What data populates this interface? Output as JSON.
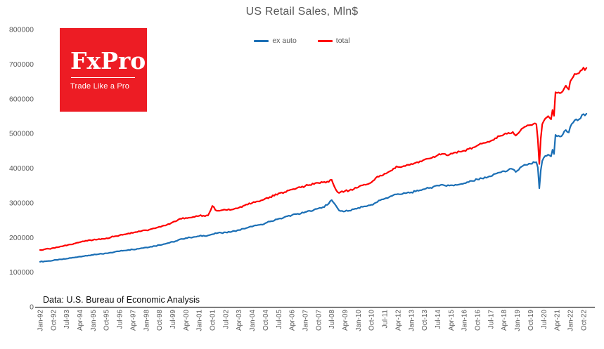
{
  "title": "US Retail Sales, Mln$",
  "legend": [
    {
      "label": "ex auto",
      "color": "#1b6fb5"
    },
    {
      "label": "total",
      "color": "#fe0000"
    }
  ],
  "source_note": "Data: U.S. Bureau of Economic Analysis",
  "logo": {
    "brand": "FxPro",
    "tagline": "Trade Like a Pro",
    "bg_color": "#ed1c24",
    "text_color": "#ffffff"
  },
  "chart_data": {
    "type": "line",
    "title": "US Retail Sales, Mln$",
    "legend_position": "top-center",
    "grid": false,
    "x_axis": {
      "unit": "months since Jan-1992",
      "tick_step_months": 9,
      "xlim": [
        0,
        371
      ],
      "tick_labels": [
        "Jan-92",
        "Oct-92",
        "Jul-93",
        "Apr-94",
        "Jan-95",
        "Oct-95",
        "Jul-96",
        "Apr-97",
        "Jan-98",
        "Oct-98",
        "Jul-99",
        "Apr-00",
        "Jan-01",
        "Oct-01",
        "Jul-02",
        "Apr-03",
        "Jan-04",
        "Oct-04",
        "Jul-05",
        "Apr-06",
        "Jan-07",
        "Oct-07",
        "Jul-08",
        "Apr-09",
        "Jan-10",
        "Oct-10",
        "Jul-11",
        "Apr-12",
        "Jan-13",
        "Oct-13",
        "Jul-14",
        "Apr-15",
        "Jan-16",
        "Oct-16",
        "Jul-17",
        "Apr-18",
        "Jan-19",
        "Oct-19",
        "Jul-20",
        "Apr-21",
        "Jan-22",
        "Oct-22"
      ]
    },
    "y_axis": {
      "ylim": [
        0,
        800000
      ],
      "tick_interval": 100000,
      "tick_labels": [
        "0",
        "100000",
        "200000",
        "300000",
        "400000",
        "500000",
        "600000",
        "700000",
        "800000"
      ]
    },
    "series": [
      {
        "name": "ex auto",
        "color": "#1b6fb5",
        "points": [
          [
            0,
            130000
          ],
          [
            3,
            131500
          ],
          [
            6,
            132500
          ],
          [
            9,
            134000
          ],
          [
            12,
            135500
          ],
          [
            15,
            137000
          ],
          [
            18,
            139000
          ],
          [
            21,
            141000
          ],
          [
            24,
            143000
          ],
          [
            27,
            145000
          ],
          [
            30,
            146500
          ],
          [
            33,
            148500
          ],
          [
            36,
            150000
          ],
          [
            39,
            151500
          ],
          [
            42,
            153000
          ],
          [
            45,
            154500
          ],
          [
            48,
            156500
          ],
          [
            51,
            159000
          ],
          [
            54,
            160500
          ],
          [
            57,
            162500
          ],
          [
            60,
            164500
          ],
          [
            63,
            165500
          ],
          [
            66,
            167500
          ],
          [
            69,
            169500
          ],
          [
            72,
            171500
          ],
          [
            75,
            173500
          ],
          [
            78,
            175500
          ],
          [
            81,
            178500
          ],
          [
            84,
            181000
          ],
          [
            87,
            184000
          ],
          [
            90,
            187500
          ],
          [
            93,
            190500
          ],
          [
            96,
            196000
          ],
          [
            99,
            198500
          ],
          [
            102,
            200000
          ],
          [
            105,
            202000
          ],
          [
            108,
            204000
          ],
          [
            111,
            205500
          ],
          [
            114,
            206000
          ],
          [
            117,
            209500
          ],
          [
            120,
            212000
          ],
          [
            123,
            213500
          ],
          [
            126,
            215000
          ],
          [
            129,
            215500
          ],
          [
            132,
            219000
          ],
          [
            135,
            221500
          ],
          [
            138,
            225500
          ],
          [
            141,
            228500
          ],
          [
            144,
            231500
          ],
          [
            147,
            235000
          ],
          [
            150,
            237500
          ],
          [
            153,
            241500
          ],
          [
            156,
            246000
          ],
          [
            159,
            249000
          ],
          [
            162,
            254000
          ],
          [
            165,
            256500
          ],
          [
            168,
            261500
          ],
          [
            171,
            264500
          ],
          [
            174,
            267500
          ],
          [
            177,
            269000
          ],
          [
            180,
            273500
          ],
          [
            183,
            277000
          ],
          [
            186,
            280000
          ],
          [
            189,
            284000
          ],
          [
            192,
            287500
          ],
          [
            195,
            294000
          ],
          [
            198,
            308000
          ],
          [
            201,
            291000
          ],
          [
            203,
            278000
          ],
          [
            204,
            276500
          ],
          [
            207,
            275500
          ],
          [
            210,
            277500
          ],
          [
            213,
            281500
          ],
          [
            216,
            285500
          ],
          [
            219,
            288500
          ],
          [
            222,
            290500
          ],
          [
            225,
            294500
          ],
          [
            228,
            300500
          ],
          [
            231,
            307500
          ],
          [
            234,
            312000
          ],
          [
            237,
            316500
          ],
          [
            240,
            322500
          ],
          [
            243,
            325500
          ],
          [
            246,
            325500
          ],
          [
            249,
            328500
          ],
          [
            252,
            330500
          ],
          [
            255,
            333000
          ],
          [
            258,
            336500
          ],
          [
            261,
            339500
          ],
          [
            264,
            342500
          ],
          [
            267,
            346500
          ],
          [
            270,
            350000
          ],
          [
            273,
            352500
          ],
          [
            276,
            348500
          ],
          [
            279,
            351000
          ],
          [
            282,
            352500
          ],
          [
            285,
            353500
          ],
          [
            288,
            356500
          ],
          [
            291,
            360000
          ],
          [
            294,
            363000
          ],
          [
            297,
            367500
          ],
          [
            300,
            370500
          ],
          [
            303,
            372500
          ],
          [
            306,
            376500
          ],
          [
            309,
            383500
          ],
          [
            312,
            387500
          ],
          [
            315,
            391500
          ],
          [
            318,
            395000
          ],
          [
            321,
            397000
          ],
          [
            323,
            389000
          ],
          [
            324,
            392500
          ],
          [
            327,
            404500
          ],
          [
            330,
            409500
          ],
          [
            333,
            412500
          ],
          [
            336,
            416500
          ],
          [
            337,
            417500
          ],
          [
            338,
            402000
          ],
          [
            339,
            342000
          ],
          [
            340,
            394000
          ],
          [
            341,
            421000
          ],
          [
            342,
            430000
          ],
          [
            345,
            439000
          ],
          [
            347,
            434000
          ],
          [
            348,
            453000
          ],
          [
            349,
            441000
          ],
          [
            350,
            496000
          ],
          [
            351,
            492000
          ],
          [
            354,
            492000
          ],
          [
            357,
            510000
          ],
          [
            359,
            503000
          ],
          [
            360,
            519000
          ],
          [
            363,
            538000
          ],
          [
            366,
            541000
          ],
          [
            369,
            556000
          ],
          [
            370,
            552000
          ],
          [
            371,
            557000
          ]
        ]
      },
      {
        "name": "total",
        "color": "#fe0000",
        "points": [
          [
            0,
            164000
          ],
          [
            3,
            166000
          ],
          [
            6,
            167500
          ],
          [
            9,
            170000
          ],
          [
            12,
            172000
          ],
          [
            15,
            174500
          ],
          [
            18,
            177000
          ],
          [
            21,
            180000
          ],
          [
            24,
            183500
          ],
          [
            27,
            186500
          ],
          [
            30,
            189000
          ],
          [
            33,
            192500
          ],
          [
            36,
            193000
          ],
          [
            39,
            194500
          ],
          [
            42,
            196500
          ],
          [
            45,
            198000
          ],
          [
            48,
            200500
          ],
          [
            51,
            204000
          ],
          [
            54,
            206500
          ],
          [
            57,
            209000
          ],
          [
            60,
            212000
          ],
          [
            63,
            213000
          ],
          [
            66,
            216000
          ],
          [
            69,
            219000
          ],
          [
            72,
            221000
          ],
          [
            75,
            224000
          ],
          [
            78,
            226500
          ],
          [
            81,
            231000
          ],
          [
            84,
            234500
          ],
          [
            87,
            239000
          ],
          [
            90,
            244000
          ],
          [
            93,
            248500
          ],
          [
            96,
            254000
          ],
          [
            99,
            256500
          ],
          [
            102,
            257500
          ],
          [
            105,
            259500
          ],
          [
            108,
            262500
          ],
          [
            111,
            263000
          ],
          [
            114,
            263500
          ],
          [
            117,
            291000
          ],
          [
            120,
            277000
          ],
          [
            123,
            278500
          ],
          [
            126,
            280000
          ],
          [
            129,
            279500
          ],
          [
            132,
            283000
          ],
          [
            135,
            286000
          ],
          [
            138,
            291500
          ],
          [
            141,
            295000
          ],
          [
            144,
            299500
          ],
          [
            147,
            304000
          ],
          [
            150,
            307000
          ],
          [
            153,
            312500
          ],
          [
            156,
            317000
          ],
          [
            159,
            320500
          ],
          [
            162,
            327500
          ],
          [
            165,
            328000
          ],
          [
            168,
            335500
          ],
          [
            171,
            338500
          ],
          [
            174,
            341500
          ],
          [
            177,
            344500
          ],
          [
            180,
            348500
          ],
          [
            183,
            351500
          ],
          [
            186,
            354000
          ],
          [
            189,
            357500
          ],
          [
            192,
            359000
          ],
          [
            195,
            361500
          ],
          [
            198,
            366500
          ],
          [
            201,
            337000
          ],
          [
            203,
            328500
          ],
          [
            204,
            331000
          ],
          [
            207,
            334000
          ],
          [
            210,
            335500
          ],
          [
            213,
            339500
          ],
          [
            216,
            345000
          ],
          [
            219,
            350500
          ],
          [
            222,
            353500
          ],
          [
            225,
            359000
          ],
          [
            228,
            372000
          ],
          [
            231,
            379000
          ],
          [
            234,
            384500
          ],
          [
            237,
            390000
          ],
          [
            240,
            399000
          ],
          [
            243,
            403500
          ],
          [
            246,
            404500
          ],
          [
            249,
            409500
          ],
          [
            252,
            412500
          ],
          [
            255,
            415500
          ],
          [
            258,
            420000
          ],
          [
            261,
            424500
          ],
          [
            264,
            427500
          ],
          [
            267,
            433000
          ],
          [
            270,
            437500
          ],
          [
            273,
            441500
          ],
          [
            276,
            437500
          ],
          [
            279,
            442500
          ],
          [
            282,
            445500
          ],
          [
            285,
            447500
          ],
          [
            288,
            450500
          ],
          [
            291,
            455500
          ],
          [
            294,
            459500
          ],
          [
            297,
            465500
          ],
          [
            300,
            470500
          ],
          [
            303,
            474000
          ],
          [
            306,
            478500
          ],
          [
            309,
            486500
          ],
          [
            312,
            492500
          ],
          [
            315,
            497500
          ],
          [
            318,
            502000
          ],
          [
            321,
            504500
          ],
          [
            323,
            494000
          ],
          [
            324,
            498000
          ],
          [
            327,
            513500
          ],
          [
            330,
            520500
          ],
          [
            333,
            524500
          ],
          [
            336,
            529500
          ],
          [
            337,
            527000
          ],
          [
            338,
            483000
          ],
          [
            339,
            412000
          ],
          [
            340,
            486000
          ],
          [
            341,
            527000
          ],
          [
            342,
            536000
          ],
          [
            345,
            550000
          ],
          [
            347,
            541000
          ],
          [
            348,
            568000
          ],
          [
            349,
            551000
          ],
          [
            350,
            619000
          ],
          [
            351,
            617000
          ],
          [
            354,
            618000
          ],
          [
            357,
            638000
          ],
          [
            359,
            627000
          ],
          [
            360,
            650000
          ],
          [
            363,
            672000
          ],
          [
            366,
            674000
          ],
          [
            369,
            690000
          ],
          [
            370,
            683000
          ],
          [
            371,
            689000
          ]
        ]
      }
    ]
  }
}
